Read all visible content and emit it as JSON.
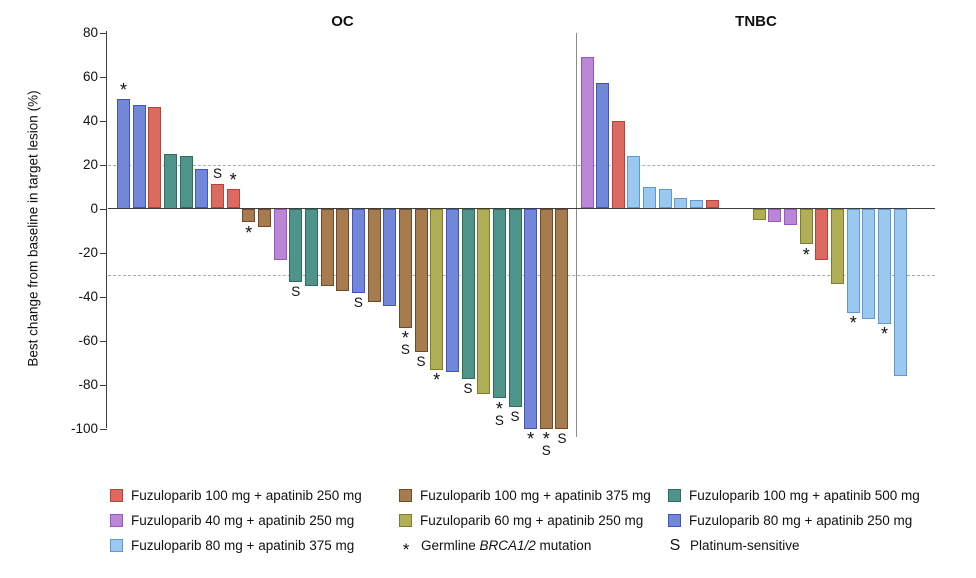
{
  "chart_data": {
    "type": "bar",
    "subtype": "waterfall",
    "ylabel": "Best change from baseline in target lesion (%)",
    "ylim": [
      -100,
      80
    ],
    "yticks": [
      80,
      60,
      40,
      20,
      0,
      -20,
      -40,
      -60,
      -80,
      -100
    ],
    "reference_lines": [
      20,
      -30
    ],
    "grid": "off",
    "mark_meanings": {
      "*": "Germline BRCA1/2 mutation",
      "S": "Platinum-sensitive"
    },
    "panels": [
      {
        "name": "OC",
        "bars": [
          {
            "value": 50,
            "color": "blue",
            "mark": "*"
          },
          {
            "value": 47,
            "color": "blue",
            "mark": ""
          },
          {
            "value": 46,
            "color": "red",
            "mark": ""
          },
          {
            "value": 25,
            "color": "teal",
            "mark": ""
          },
          {
            "value": 24,
            "color": "teal",
            "mark": ""
          },
          {
            "value": 18,
            "color": "blue",
            "mark": ""
          },
          {
            "value": 11,
            "color": "red",
            "mark": "S"
          },
          {
            "value": 9,
            "color": "red",
            "mark": "*"
          },
          {
            "value": -6,
            "color": "brown",
            "mark": "*"
          },
          {
            "value": -8,
            "color": "brown",
            "mark": ""
          },
          {
            "value": -23,
            "color": "purple",
            "mark": ""
          },
          {
            "value": -33,
            "color": "teal",
            "mark": "S"
          },
          {
            "value": -35,
            "color": "teal",
            "mark": ""
          },
          {
            "value": -35,
            "color": "brown",
            "mark": ""
          },
          {
            "value": -37,
            "color": "brown",
            "mark": ""
          },
          {
            "value": -38,
            "color": "blue",
            "mark": "S"
          },
          {
            "value": -42,
            "color": "brown",
            "mark": ""
          },
          {
            "value": -44,
            "color": "blue",
            "mark": ""
          },
          {
            "value": -54,
            "color": "brown",
            "mark": "*S"
          },
          {
            "value": -65,
            "color": "brown",
            "mark": "S"
          },
          {
            "value": -73,
            "color": "olive",
            "mark": "*"
          },
          {
            "value": -74,
            "color": "blue",
            "mark": ""
          },
          {
            "value": -77,
            "color": "teal",
            "mark": "S"
          },
          {
            "value": -84,
            "color": "olive",
            "mark": ""
          },
          {
            "value": -86,
            "color": "teal",
            "mark": "*S"
          },
          {
            "value": -90,
            "color": "teal",
            "mark": "S"
          },
          {
            "value": -100,
            "color": "blue",
            "mark": "*"
          },
          {
            "value": -100,
            "color": "brown",
            "mark": "*S"
          },
          {
            "value": -100,
            "color": "brown",
            "mark": "S"
          }
        ]
      },
      {
        "name": "TNBC",
        "gap_before_index": 9,
        "gap_slots": 2,
        "bars": [
          {
            "value": 69,
            "color": "purple",
            "mark": ""
          },
          {
            "value": 57,
            "color": "blue",
            "mark": ""
          },
          {
            "value": 40,
            "color": "red",
            "mark": ""
          },
          {
            "value": 24,
            "color": "lightblue",
            "mark": ""
          },
          {
            "value": 10,
            "color": "lightblue",
            "mark": ""
          },
          {
            "value": 9,
            "color": "lightblue",
            "mark": ""
          },
          {
            "value": 5,
            "color": "lightblue",
            "mark": ""
          },
          {
            "value": 4,
            "color": "lightblue",
            "mark": ""
          },
          {
            "value": 4,
            "color": "red",
            "mark": ""
          },
          {
            "value": -5,
            "color": "olive",
            "mark": ""
          },
          {
            "value": -6,
            "color": "purple",
            "mark": ""
          },
          {
            "value": -7,
            "color": "purple",
            "mark": ""
          },
          {
            "value": -16,
            "color": "olive",
            "mark": "*"
          },
          {
            "value": -23,
            "color": "red",
            "mark": ""
          },
          {
            "value": -34,
            "color": "olive",
            "mark": ""
          },
          {
            "value": -47,
            "color": "lightblue",
            "mark": "*"
          },
          {
            "value": -50,
            "color": "lightblue",
            "mark": ""
          },
          {
            "value": -52,
            "color": "lightblue",
            "mark": "*"
          },
          {
            "value": -76,
            "color": "lightblue",
            "mark": ""
          }
        ]
      }
    ]
  },
  "colors": {
    "red": {
      "fill": "#DB6A61",
      "border": "#B8423B"
    },
    "purple": {
      "fill": "#B987D3",
      "border": "#9A55C4"
    },
    "lightblue": {
      "fill": "#9BC8EF",
      "border": "#5B9BD5"
    },
    "brown": {
      "fill": "#A67C4E",
      "border": "#71492A"
    },
    "olive": {
      "fill": "#B0AF57",
      "border": "#7E7D28"
    },
    "teal": {
      "fill": "#4E948A",
      "border": "#2E6C62"
    },
    "blue": {
      "fill": "#7387D8",
      "border": "#4253C5"
    }
  },
  "legend": {
    "columns": [
      [
        {
          "color": "red",
          "label": "Fuzuloparib 100 mg + apatinib 250 mg"
        },
        {
          "color": "purple",
          "label": "Fuzuloparib 40 mg + apatinib 250 mg"
        },
        {
          "color": "lightblue",
          "label": "Fuzuloparib 80 mg + apatinib 375 mg"
        }
      ],
      [
        {
          "color": "brown",
          "label": "Fuzuloparib 100 mg + apatinib 375 mg"
        },
        {
          "color": "olive",
          "label": "Fuzuloparib 60 mg + apatinib 250 mg"
        },
        {
          "symbol": "*",
          "label_parts": [
            "Germline ",
            "BRCA1/2",
            " mutation"
          ]
        }
      ],
      [
        {
          "color": "teal",
          "label": "Fuzuloparib 100 mg + apatinib 500 mg"
        },
        {
          "color": "blue",
          "label": "Fuzuloparib 80 mg + apatinib 250 mg"
        },
        {
          "symbol": "S",
          "label": "Platinum-sensitive"
        }
      ]
    ]
  }
}
